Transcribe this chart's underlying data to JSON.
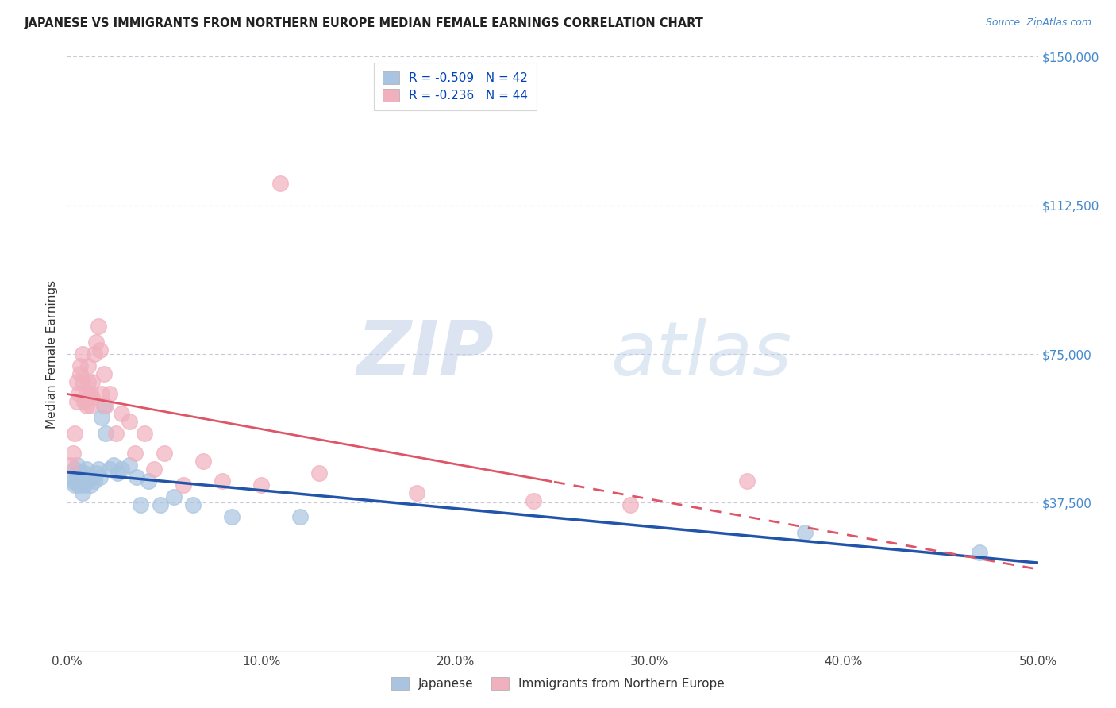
{
  "title": "JAPANESE VS IMMIGRANTS FROM NORTHERN EUROPE MEDIAN FEMALE EARNINGS CORRELATION CHART",
  "source": "Source: ZipAtlas.com",
  "ylabel": "Median Female Earnings",
  "ytick_positions": [
    0,
    37500,
    75000,
    112500,
    150000
  ],
  "ytick_labels": [
    "",
    "$37,500",
    "$75,000",
    "$112,500",
    "$150,000"
  ],
  "xtick_positions": [
    0.0,
    0.1,
    0.2,
    0.3,
    0.4,
    0.5
  ],
  "xlim": [
    0.0,
    0.5
  ],
  "ylim": [
    0,
    150000
  ],
  "legend1_label": "R = -0.509   N = 42",
  "legend2_label": "R = -0.236   N = 44",
  "legend_label1_short": "Japanese",
  "legend_label2_short": "Immigrants from Northern Europe",
  "blue_scatter_color": "#a8c4e0",
  "pink_scatter_color": "#f0b0be",
  "blue_line_color": "#2255aa",
  "pink_line_color": "#dd5566",
  "watermark_zip": "ZIP",
  "watermark_atlas": "atlas",
  "background_color": "#ffffff",
  "grid_color": "#c8c8d8",
  "japanese_x": [
    0.002,
    0.003,
    0.004,
    0.004,
    0.005,
    0.005,
    0.005,
    0.006,
    0.006,
    0.007,
    0.007,
    0.008,
    0.008,
    0.009,
    0.009,
    0.01,
    0.01,
    0.011,
    0.012,
    0.013,
    0.014,
    0.015,
    0.016,
    0.017,
    0.018,
    0.019,
    0.02,
    0.022,
    0.024,
    0.026,
    0.028,
    0.032,
    0.036,
    0.038,
    0.042,
    0.048,
    0.055,
    0.065,
    0.085,
    0.12,
    0.38,
    0.47
  ],
  "japanese_y": [
    44000,
    43000,
    46000,
    42000,
    47000,
    45000,
    43000,
    44000,
    42000,
    45000,
    43000,
    44000,
    40000,
    45000,
    42000,
    46000,
    44000,
    43000,
    42000,
    44000,
    43000,
    45000,
    46000,
    44000,
    59000,
    62000,
    55000,
    46000,
    47000,
    45000,
    46000,
    47000,
    44000,
    37000,
    43000,
    37000,
    39000,
    37000,
    34000,
    34000,
    30000,
    25000
  ],
  "northern_europe_x": [
    0.002,
    0.003,
    0.004,
    0.005,
    0.005,
    0.006,
    0.007,
    0.007,
    0.008,
    0.008,
    0.009,
    0.01,
    0.01,
    0.011,
    0.011,
    0.012,
    0.012,
    0.013,
    0.013,
    0.014,
    0.015,
    0.016,
    0.017,
    0.018,
    0.019,
    0.02,
    0.022,
    0.025,
    0.028,
    0.032,
    0.035,
    0.04,
    0.045,
    0.05,
    0.06,
    0.07,
    0.08,
    0.1,
    0.13,
    0.18,
    0.24,
    0.29,
    0.35,
    0.11
  ],
  "northern_europe_y": [
    47000,
    50000,
    55000,
    63000,
    68000,
    65000,
    70000,
    72000,
    68000,
    75000,
    63000,
    65000,
    62000,
    68000,
    72000,
    65000,
    62000,
    68000,
    64000,
    75000,
    78000,
    82000,
    76000,
    65000,
    70000,
    62000,
    65000,
    55000,
    60000,
    58000,
    50000,
    55000,
    46000,
    50000,
    42000,
    48000,
    43000,
    42000,
    45000,
    40000,
    38000,
    37000,
    43000,
    118000
  ]
}
